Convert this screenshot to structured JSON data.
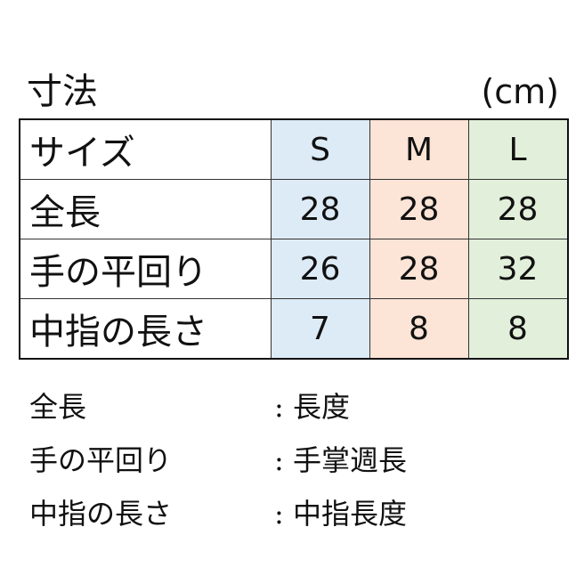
{
  "title": "寸法",
  "unit": "(cm)",
  "colors": {
    "S": "#ddebf7",
    "M": "#fce4d6",
    "L": "#e2efda"
  },
  "table": {
    "header": {
      "label": "サイズ",
      "sizes": [
        "S",
        "M",
        "L"
      ]
    },
    "rows": [
      {
        "label": "全長",
        "values": [
          "28",
          "28",
          "28"
        ]
      },
      {
        "label": "手の平回り",
        "values": [
          "26",
          "28",
          "32"
        ]
      },
      {
        "label": "中指の長さ",
        "values": [
          "7",
          "8",
          "8"
        ]
      }
    ]
  },
  "legend": [
    {
      "term": "全長",
      "definition": ": 長度"
    },
    {
      "term": "手の平回り",
      "definition": ": 手掌週長"
    },
    {
      "term": "中指の長さ",
      "definition": ": 中指長度"
    }
  ]
}
